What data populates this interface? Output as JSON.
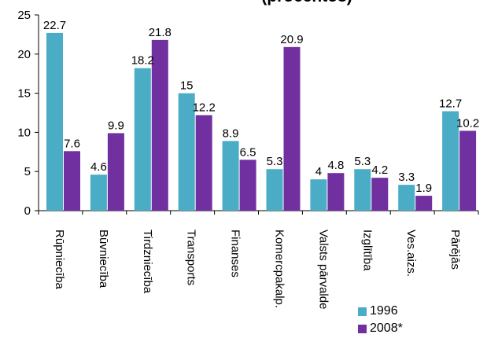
{
  "chart_data": {
    "type": "bar",
    "title": "(procentos)",
    "categories": [
      "Rūpniecība",
      "Būvniecība",
      "Tirdzniecība",
      "Transports",
      "Finanses",
      "Komercpakalp.",
      "Valsts pārvalde",
      "Izglītība",
      "Ves.aizs.",
      "Pārējās"
    ],
    "series": [
      {
        "name": "1996",
        "color": "#4bacc6",
        "values": [
          22.7,
          4.6,
          18.2,
          15,
          8.9,
          5.3,
          4,
          5.3,
          3.3,
          12.7
        ]
      },
      {
        "name": "2008*",
        "color": "#7030a0",
        "values": [
          7.6,
          9.9,
          21.8,
          12.2,
          6.5,
          20.9,
          4.8,
          4.2,
          1.9,
          10.2
        ]
      }
    ],
    "data_labels": [
      [
        "22.7",
        "4.6",
        "18.2",
        "15",
        "8.9",
        "5.3",
        "4",
        "5.3",
        "3.3",
        "12.7"
      ],
      [
        "7.6",
        "9.9",
        "21.8",
        "12.2",
        "6.5",
        "20.9",
        "4.8",
        "4.2",
        "1.9",
        "10.2"
      ]
    ],
    "ylim": [
      0,
      25
    ],
    "yticks": [
      "0",
      "5",
      "10",
      "15",
      "20",
      "25"
    ],
    "grid": false,
    "legend_position": "bottom-right"
  }
}
